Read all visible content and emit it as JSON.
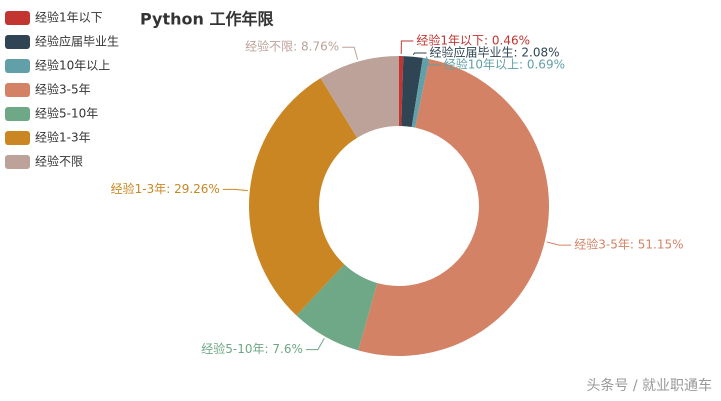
{
  "chart_data": {
    "type": "donut",
    "title": "Python 工作年限",
    "categories": [
      "经验1年以下",
      "经验应届毕业生",
      "经验10年以上",
      "经验3-5年",
      "经验5-10年",
      "经验1-3年",
      "经验不限"
    ],
    "values": [
      0.46,
      2.08,
      0.69,
      51.15,
      7.6,
      29.26,
      8.76
    ],
    "value_labels": [
      "经验1年以下: 0.46%",
      "经验应届毕业生: 2.08%",
      "经验10年以上: 0.69%",
      "经验3-5年: 51.15%",
      "经验5-10年: 7.6%",
      "经验1-3年: 29.26%",
      "经验不限: 8.76%"
    ],
    "colors": [
      "#c23531",
      "#2f4554",
      "#61a0a8",
      "#d48265",
      "#6fa886",
      "#ca8622",
      "#bda29a"
    ],
    "watermark": "头条号 / 就业职通车"
  }
}
